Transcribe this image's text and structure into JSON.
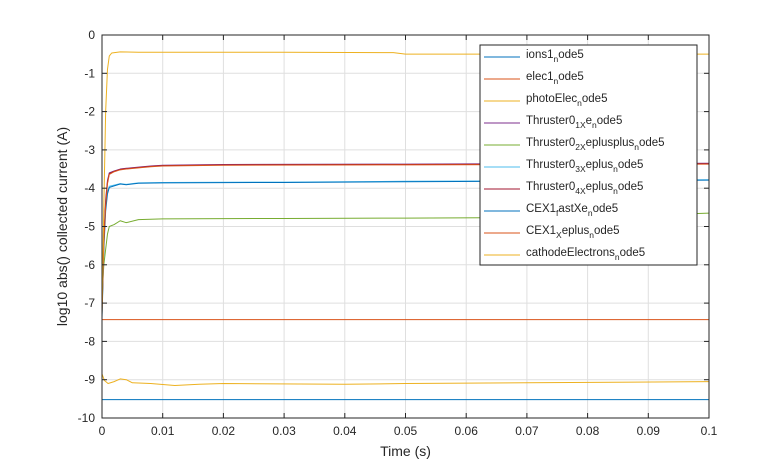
{
  "chart_data": {
    "type": "line",
    "title": "",
    "xlabel": "Time (s)",
    "ylabel": "log10 abs() collected current (A)",
    "xlim": [
      0,
      0.1
    ],
    "ylim": [
      -10,
      0
    ],
    "xticks": [
      0,
      0.01,
      0.02,
      0.03,
      0.04,
      0.05,
      0.06,
      0.07,
      0.08,
      0.09,
      0.1
    ],
    "xtick_labels": [
      "0",
      "0.01",
      "0.02",
      "0.03",
      "0.04",
      "0.05",
      "0.06",
      "0.07",
      "0.08",
      "0.09",
      "0.1"
    ],
    "yticks": [
      0,
      -1,
      -2,
      -3,
      -4,
      -5,
      -6,
      -7,
      -8,
      -9,
      -10
    ],
    "ytick_labels": [
      "0",
      "-1",
      "-2",
      "-3",
      "-4",
      "-5",
      "-6",
      "-7",
      "-8",
      "-9",
      "-10"
    ],
    "grid": true,
    "legend_position": "top-right",
    "series": [
      {
        "name": "ions1_node5",
        "legend_parts": [
          "ions1",
          "n",
          "ode5"
        ],
        "color": "#0072bd",
        "points": [
          [
            0,
            -9.52
          ],
          [
            0.1,
            -9.52
          ]
        ]
      },
      {
        "name": "elec1_node5",
        "legend_parts": [
          "elec1",
          "n",
          "ode5"
        ],
        "color": "#d95319",
        "points": [
          [
            0,
            -7.43
          ],
          [
            0.1,
            -7.43
          ]
        ]
      },
      {
        "name": "photoElec_node5",
        "legend_parts": [
          "photoElec",
          "n",
          "ode5"
        ],
        "color": "#edb120",
        "points": [
          [
            0,
            -8.85
          ],
          [
            0.0004,
            -9.02
          ],
          [
            0.001,
            -9.1
          ],
          [
            0.002,
            -9.05
          ],
          [
            0.003,
            -8.98
          ],
          [
            0.004,
            -9.0
          ],
          [
            0.005,
            -9.08
          ],
          [
            0.008,
            -9.1
          ],
          [
            0.012,
            -9.15
          ],
          [
            0.016,
            -9.12
          ],
          [
            0.02,
            -9.1
          ],
          [
            0.04,
            -9.12
          ],
          [
            0.05,
            -9.1
          ],
          [
            0.07,
            -9.08
          ],
          [
            0.1,
            -9.05
          ]
        ]
      },
      {
        "name": "Thruster0_1Xe_node5",
        "legend_parts": [
          "Thruster0",
          "1X",
          "e",
          "n",
          "ode5"
        ],
        "color": "#7e2f8e",
        "points": [
          [
            0,
            -7.2
          ],
          [
            0.0003,
            -5.3
          ],
          [
            0.0006,
            -4.3
          ],
          [
            0.0009,
            -3.8
          ],
          [
            0.0012,
            -3.6
          ],
          [
            0.002,
            -3.55
          ],
          [
            0.003,
            -3.5
          ],
          [
            0.004,
            -3.48
          ],
          [
            0.006,
            -3.45
          ],
          [
            0.008,
            -3.42
          ],
          [
            0.01,
            -3.4
          ],
          [
            0.02,
            -3.38
          ],
          [
            0.05,
            -3.37
          ],
          [
            0.1,
            -3.35
          ]
        ]
      },
      {
        "name": "Thruster0_2Xeplusplus_node5",
        "legend_parts": [
          "Thruster0",
          "2X",
          "eplusplus",
          "n",
          "ode5"
        ],
        "color": "#77ac30",
        "points": [
          [
            0,
            -6.8
          ],
          [
            0.0003,
            -6.0
          ],
          [
            0.0006,
            -5.6
          ],
          [
            0.0009,
            -5.2
          ],
          [
            0.0012,
            -5.0
          ],
          [
            0.002,
            -4.95
          ],
          [
            0.003,
            -4.85
          ],
          [
            0.004,
            -4.9
          ],
          [
            0.006,
            -4.82
          ],
          [
            0.01,
            -4.8
          ],
          [
            0.03,
            -4.79
          ],
          [
            0.05,
            -4.78
          ],
          [
            0.08,
            -4.76
          ],
          [
            0.1,
            -4.65
          ]
        ]
      },
      {
        "name": "Thruster0_3Xeplus_node5",
        "legend_parts": [
          "Thruster0",
          "3X",
          "eplus",
          "n",
          "ode5"
        ],
        "color": "#4dbeee",
        "points": [
          [
            0,
            -7.3
          ],
          [
            0.0003,
            -5.5
          ],
          [
            0.0006,
            -4.5
          ],
          [
            0.0009,
            -4.1
          ],
          [
            0.0012,
            -3.95
          ],
          [
            0.002,
            -3.92
          ],
          [
            0.003,
            -3.88
          ],
          [
            0.004,
            -3.9
          ],
          [
            0.006,
            -3.86
          ],
          [
            0.01,
            -3.85
          ],
          [
            0.03,
            -3.84
          ],
          [
            0.05,
            -3.82
          ],
          [
            0.08,
            -3.8
          ],
          [
            0.1,
            -3.78
          ]
        ]
      },
      {
        "name": "Thruster0_4Xeplus_node5",
        "legend_parts": [
          "Thruster0",
          "4X",
          "eplus",
          "n",
          "ode5"
        ],
        "color": "#a2142f",
        "points": [
          [
            0,
            -7.2
          ],
          [
            0.0003,
            -5.4
          ],
          [
            0.0006,
            -4.4
          ],
          [
            0.0009,
            -3.85
          ],
          [
            0.0012,
            -3.62
          ],
          [
            0.002,
            -3.56
          ],
          [
            0.003,
            -3.51
          ],
          [
            0.004,
            -3.49
          ],
          [
            0.006,
            -3.46
          ],
          [
            0.008,
            -3.43
          ],
          [
            0.01,
            -3.41
          ],
          [
            0.02,
            -3.39
          ],
          [
            0.05,
            -3.38
          ],
          [
            0.1,
            -3.36
          ]
        ]
      },
      {
        "name": "CEX1_fastXe_node5",
        "legend_parts": [
          "CEX1",
          "f",
          "astXe",
          "n",
          "ode5"
        ],
        "color": "#0072bd",
        "points": [
          [
            0,
            -7.4
          ],
          [
            0.0003,
            -5.6
          ],
          [
            0.0006,
            -4.6
          ],
          [
            0.0009,
            -4.15
          ],
          [
            0.0012,
            -3.98
          ],
          [
            0.002,
            -3.94
          ],
          [
            0.003,
            -3.89
          ],
          [
            0.004,
            -3.91
          ],
          [
            0.006,
            -3.87
          ],
          [
            0.01,
            -3.86
          ],
          [
            0.03,
            -3.85
          ],
          [
            0.05,
            -3.83
          ],
          [
            0.08,
            -3.81
          ],
          [
            0.1,
            -3.79
          ]
        ]
      },
      {
        "name": "CEX1_Xeplus_node5",
        "legend_parts": [
          "CEX1",
          "X",
          "eplus",
          "n",
          "ode5"
        ],
        "color": "#d95319",
        "points": [
          [
            0,
            -7.3
          ],
          [
            0.0003,
            -5.45
          ],
          [
            0.0006,
            -4.45
          ],
          [
            0.0009,
            -3.88
          ],
          [
            0.0012,
            -3.64
          ],
          [
            0.002,
            -3.57
          ],
          [
            0.003,
            -3.52
          ],
          [
            0.004,
            -3.5
          ],
          [
            0.006,
            -3.47
          ],
          [
            0.008,
            -3.44
          ],
          [
            0.01,
            -3.42
          ],
          [
            0.02,
            -3.4
          ],
          [
            0.05,
            -3.39
          ],
          [
            0.1,
            -3.37
          ]
        ]
      },
      {
        "name": "cathodeElectrons_node5",
        "legend_parts": [
          "cathodeElectrons",
          "n",
          "ode5"
        ],
        "color": "#edb120",
        "points": [
          [
            0,
            -7.3
          ],
          [
            0.0003,
            -4.5
          ],
          [
            0.0006,
            -2.0
          ],
          [
            0.0009,
            -0.9
          ],
          [
            0.0012,
            -0.55
          ],
          [
            0.0016,
            -0.47
          ],
          [
            0.003,
            -0.44
          ],
          [
            0.006,
            -0.45
          ],
          [
            0.01,
            -0.45
          ],
          [
            0.03,
            -0.45
          ],
          [
            0.048,
            -0.46
          ],
          [
            0.05,
            -0.5
          ],
          [
            0.07,
            -0.5
          ],
          [
            0.1,
            -0.5
          ]
        ]
      }
    ]
  }
}
